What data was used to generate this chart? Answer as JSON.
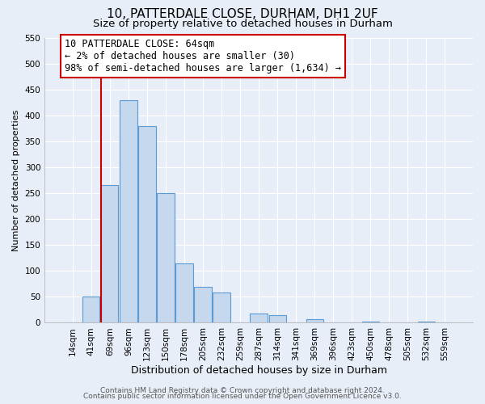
{
  "title": "10, PATTERDALE CLOSE, DURHAM, DH1 2UF",
  "subtitle": "Size of property relative to detached houses in Durham",
  "xlabel": "Distribution of detached houses by size in Durham",
  "ylabel": "Number of detached properties",
  "bar_labels": [
    "14sqm",
    "41sqm",
    "69sqm",
    "96sqm",
    "123sqm",
    "150sqm",
    "178sqm",
    "205sqm",
    "232sqm",
    "259sqm",
    "287sqm",
    "314sqm",
    "341sqm",
    "369sqm",
    "396sqm",
    "423sqm",
    "450sqm",
    "478sqm",
    "505sqm",
    "532sqm",
    "559sqm"
  ],
  "bar_values": [
    0,
    50,
    265,
    430,
    380,
    250,
    115,
    70,
    58,
    0,
    18,
    15,
    0,
    7,
    0,
    0,
    2,
    0,
    0,
    2,
    0
  ],
  "bar_color": "#c5d8ed",
  "bar_edge_color": "#5b9bd5",
  "vline_color": "#cc0000",
  "ylim": [
    0,
    550
  ],
  "yticks": [
    0,
    50,
    100,
    150,
    200,
    250,
    300,
    350,
    400,
    450,
    500,
    550
  ],
  "annotation_line1": "10 PATTERDALE CLOSE: 64sqm",
  "annotation_line2": "← 2% of detached houses are smaller (30)",
  "annotation_line3": "98% of semi-detached houses are larger (1,634) →",
  "annotation_box_color": "#ffffff",
  "annotation_box_edge": "#cc0000",
  "footer1": "Contains HM Land Registry data © Crown copyright and database right 2024.",
  "footer2": "Contains public sector information licensed under the Open Government Licence v3.0.",
  "background_color": "#e8eef7",
  "plot_bg_color": "#e8eef7",
  "grid_color": "#ffffff",
  "title_fontsize": 11,
  "subtitle_fontsize": 9.5,
  "xlabel_fontsize": 9,
  "ylabel_fontsize": 8,
  "tick_fontsize": 7.5,
  "annotation_fontsize": 8.5,
  "footer_fontsize": 6.5
}
